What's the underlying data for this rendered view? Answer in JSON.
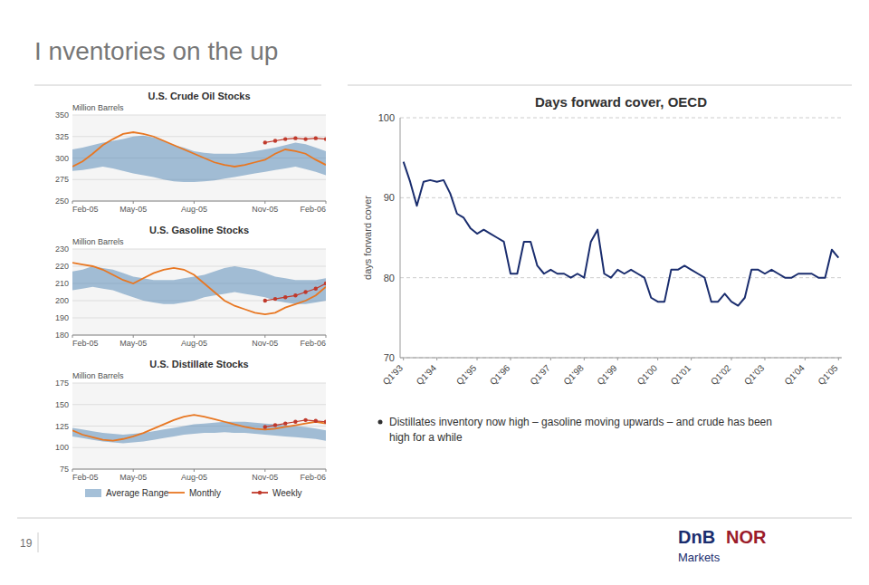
{
  "title": "I nventories on the up",
  "annotations": [
    {
      "text": "Distillates inventory now high – gasoline moving upwards – and crude has been"
    },
    {
      "text": "high for a while"
    },
    {
      "text": "19"
    },
    {
      "text": "DnB",
      "color": "#1a2d6e"
    },
    {
      "text": "NOR",
      "color": "#9b1b2a"
    },
    {
      "text": "Markets",
      "color": "#1a2d6e"
    }
  ],
  "chart_data": [
    {
      "type": "line",
      "title": "U.S. Crude Oil Stocks",
      "ylabel": "Million Barrels",
      "categories": [
        "Feb-05",
        null,
        null,
        null,
        null,
        null,
        "May-05",
        null,
        null,
        null,
        null,
        null,
        "Aug-05",
        null,
        null,
        null,
        null,
        null,
        null,
        "Nov-05",
        null,
        null,
        null,
        null,
        null,
        "Feb-06"
      ],
      "ylim": [
        250,
        350
      ],
      "yticks": [
        250,
        275,
        300,
        325,
        350
      ],
      "grid": true,
      "series": [
        {
          "name": "Average Range",
          "type": "area",
          "color": "#5b8db8",
          "values": [
            310,
            312,
            315,
            318,
            320,
            322,
            325,
            326,
            324,
            320,
            315,
            312,
            308,
            306,
            305,
            305,
            305,
            306,
            308,
            310,
            312,
            315,
            318,
            316,
            312,
            308
          ],
          "lower": [
            285,
            286,
            288,
            290,
            288,
            285,
            282,
            280,
            278,
            275,
            273,
            272,
            272,
            273,
            274,
            276,
            278,
            280,
            282,
            284,
            286,
            288,
            290,
            287,
            284,
            280
          ]
        },
        {
          "name": "Monthly",
          "type": "line",
          "color": "#e87722",
          "values": [
            290,
            296,
            305,
            315,
            322,
            328,
            330,
            328,
            325,
            320,
            315,
            310,
            305,
            300,
            295,
            292,
            290,
            292,
            295,
            298,
            305,
            310,
            308,
            305,
            298,
            292
          ]
        },
        {
          "name": "Weekly",
          "type": "line",
          "color": "#c0392b",
          "marker": "circle",
          "values": [
            null,
            null,
            null,
            null,
            null,
            null,
            null,
            null,
            null,
            null,
            null,
            null,
            null,
            null,
            null,
            null,
            null,
            null,
            null,
            318,
            320,
            322,
            323,
            322,
            323,
            322
          ]
        }
      ]
    },
    {
      "type": "line",
      "title": "U.S. Gasoline Stocks",
      "ylabel": "Million Barrels",
      "categories": [
        "Feb-05",
        null,
        null,
        null,
        null,
        null,
        "May-05",
        null,
        null,
        null,
        null,
        null,
        "Aug-05",
        null,
        null,
        null,
        null,
        null,
        null,
        "Nov-05",
        null,
        null,
        null,
        null,
        null,
        "Feb-06"
      ],
      "ylim": [
        180,
        230
      ],
      "yticks": [
        180,
        190,
        200,
        210,
        220,
        230
      ],
      "grid": true,
      "series": [
        {
          "name": "Average Range",
          "type": "area",
          "color": "#5b8db8",
          "values": [
            217,
            218,
            220,
            219,
            218,
            216,
            214,
            213,
            212,
            212,
            212,
            213,
            214,
            215,
            217,
            219,
            220,
            219,
            218,
            216,
            214,
            213,
            212,
            212,
            212,
            213
          ],
          "lower": [
            206,
            207,
            208,
            207,
            206,
            204,
            202,
            200,
            199,
            198,
            198,
            199,
            200,
            202,
            203,
            204,
            205,
            204,
            203,
            202,
            200,
            199,
            198,
            198,
            199,
            200
          ]
        },
        {
          "name": "Monthly",
          "type": "line",
          "color": "#e87722",
          "values": [
            222,
            221,
            220,
            218,
            215,
            212,
            210,
            213,
            216,
            218,
            219,
            218,
            215,
            210,
            205,
            200,
            197,
            195,
            193,
            192,
            193,
            196,
            198,
            200,
            203,
            208
          ]
        },
        {
          "name": "Weekly",
          "type": "line",
          "color": "#c0392b",
          "marker": "circle",
          "values": [
            null,
            null,
            null,
            null,
            null,
            null,
            null,
            null,
            null,
            null,
            null,
            null,
            null,
            null,
            null,
            null,
            null,
            null,
            null,
            200,
            201,
            202,
            203,
            205,
            207,
            210
          ]
        }
      ]
    },
    {
      "type": "line",
      "title": "U.S. Distillate Stocks",
      "ylabel": "Million Barrels",
      "categories": [
        "Feb-05",
        null,
        null,
        null,
        null,
        null,
        "May-05",
        null,
        null,
        null,
        null,
        null,
        "Aug-05",
        null,
        null,
        null,
        null,
        null,
        null,
        "Nov-05",
        null,
        null,
        null,
        null,
        null,
        "Feb-06"
      ],
      "ylim": [
        75,
        175
      ],
      "yticks": [
        75,
        100,
        125,
        150,
        175
      ],
      "grid": true,
      "legend": "bottom",
      "series": [
        {
          "name": "Average Range",
          "type": "area",
          "color": "#5b8db8",
          "values": [
            123,
            121,
            119,
            117,
            116,
            115,
            116,
            117,
            119,
            121,
            123,
            125,
            127,
            128,
            129,
            130,
            130,
            130,
            129,
            128,
            127,
            126,
            125,
            124,
            122,
            120
          ],
          "lower": [
            113,
            111,
            109,
            107,
            106,
            105,
            106,
            107,
            109,
            111,
            113,
            115,
            116,
            117,
            117,
            118,
            117,
            117,
            116,
            115,
            114,
            113,
            112,
            111,
            110,
            108
          ]
        },
        {
          "name": "Monthly",
          "type": "line",
          "color": "#e87722",
          "values": [
            120,
            115,
            112,
            109,
            108,
            110,
            113,
            117,
            122,
            127,
            132,
            136,
            138,
            136,
            133,
            130,
            127,
            124,
            122,
            121,
            122,
            124,
            126,
            128,
            130,
            128
          ]
        },
        {
          "name": "Weekly",
          "type": "line",
          "color": "#c0392b",
          "marker": "circle",
          "values": [
            null,
            null,
            null,
            null,
            null,
            null,
            null,
            null,
            null,
            null,
            null,
            null,
            null,
            null,
            null,
            null,
            null,
            null,
            null,
            124,
            126,
            128,
            130,
            132,
            131,
            130
          ]
        }
      ]
    },
    {
      "type": "line",
      "title": "Days forward cover, OECD",
      "ylabel": "days forward cover",
      "categories": [
        "Q1'93",
        null,
        null,
        null,
        null,
        "Q1'94",
        null,
        null,
        null,
        null,
        null,
        "Q1'95",
        null,
        null,
        null,
        null,
        "Q1'96",
        null,
        null,
        null,
        null,
        null,
        "Q1'97",
        null,
        null,
        null,
        null,
        "Q1'98",
        null,
        null,
        null,
        null,
        "Q1'99",
        null,
        null,
        null,
        null,
        null,
        "Q1'00",
        null,
        null,
        null,
        null,
        "Q1'01",
        null,
        null,
        null,
        null,
        null,
        "Q1'02",
        null,
        null,
        null,
        null,
        "Q1'03",
        null,
        null,
        null,
        null,
        null,
        "Q1'04",
        null,
        null,
        null,
        null,
        "Q1'05"
      ],
      "values": [
        94.5,
        92.0,
        89.0,
        92.0,
        92.2,
        92.0,
        92.2,
        90.5,
        88.0,
        87.5,
        86.2,
        85.5,
        86.0,
        85.5,
        85.0,
        84.5,
        80.5,
        80.5,
        84.5,
        84.5,
        81.5,
        80.5,
        81.0,
        80.5,
        80.5,
        80.0,
        80.5,
        80.0,
        84.5,
        86.0,
        80.5,
        80.0,
        81.0,
        80.5,
        81.0,
        80.5,
        80.0,
        77.5,
        77.0,
        77.0,
        81.0,
        81.0,
        81.5,
        81.0,
        80.5,
        80.0,
        77.0,
        77.0,
        78.0,
        77.0,
        76.5,
        77.5,
        81.0,
        81.0,
        80.5,
        81.0,
        80.5,
        80.0,
        80.0,
        80.5,
        80.5,
        80.5,
        80.0,
        80.0,
        83.5,
        82.5
      ],
      "color": "#1a2d6e",
      "ylim": [
        70,
        100
      ],
      "yticks": [
        70,
        80,
        90,
        100
      ],
      "grid": true
    }
  ]
}
